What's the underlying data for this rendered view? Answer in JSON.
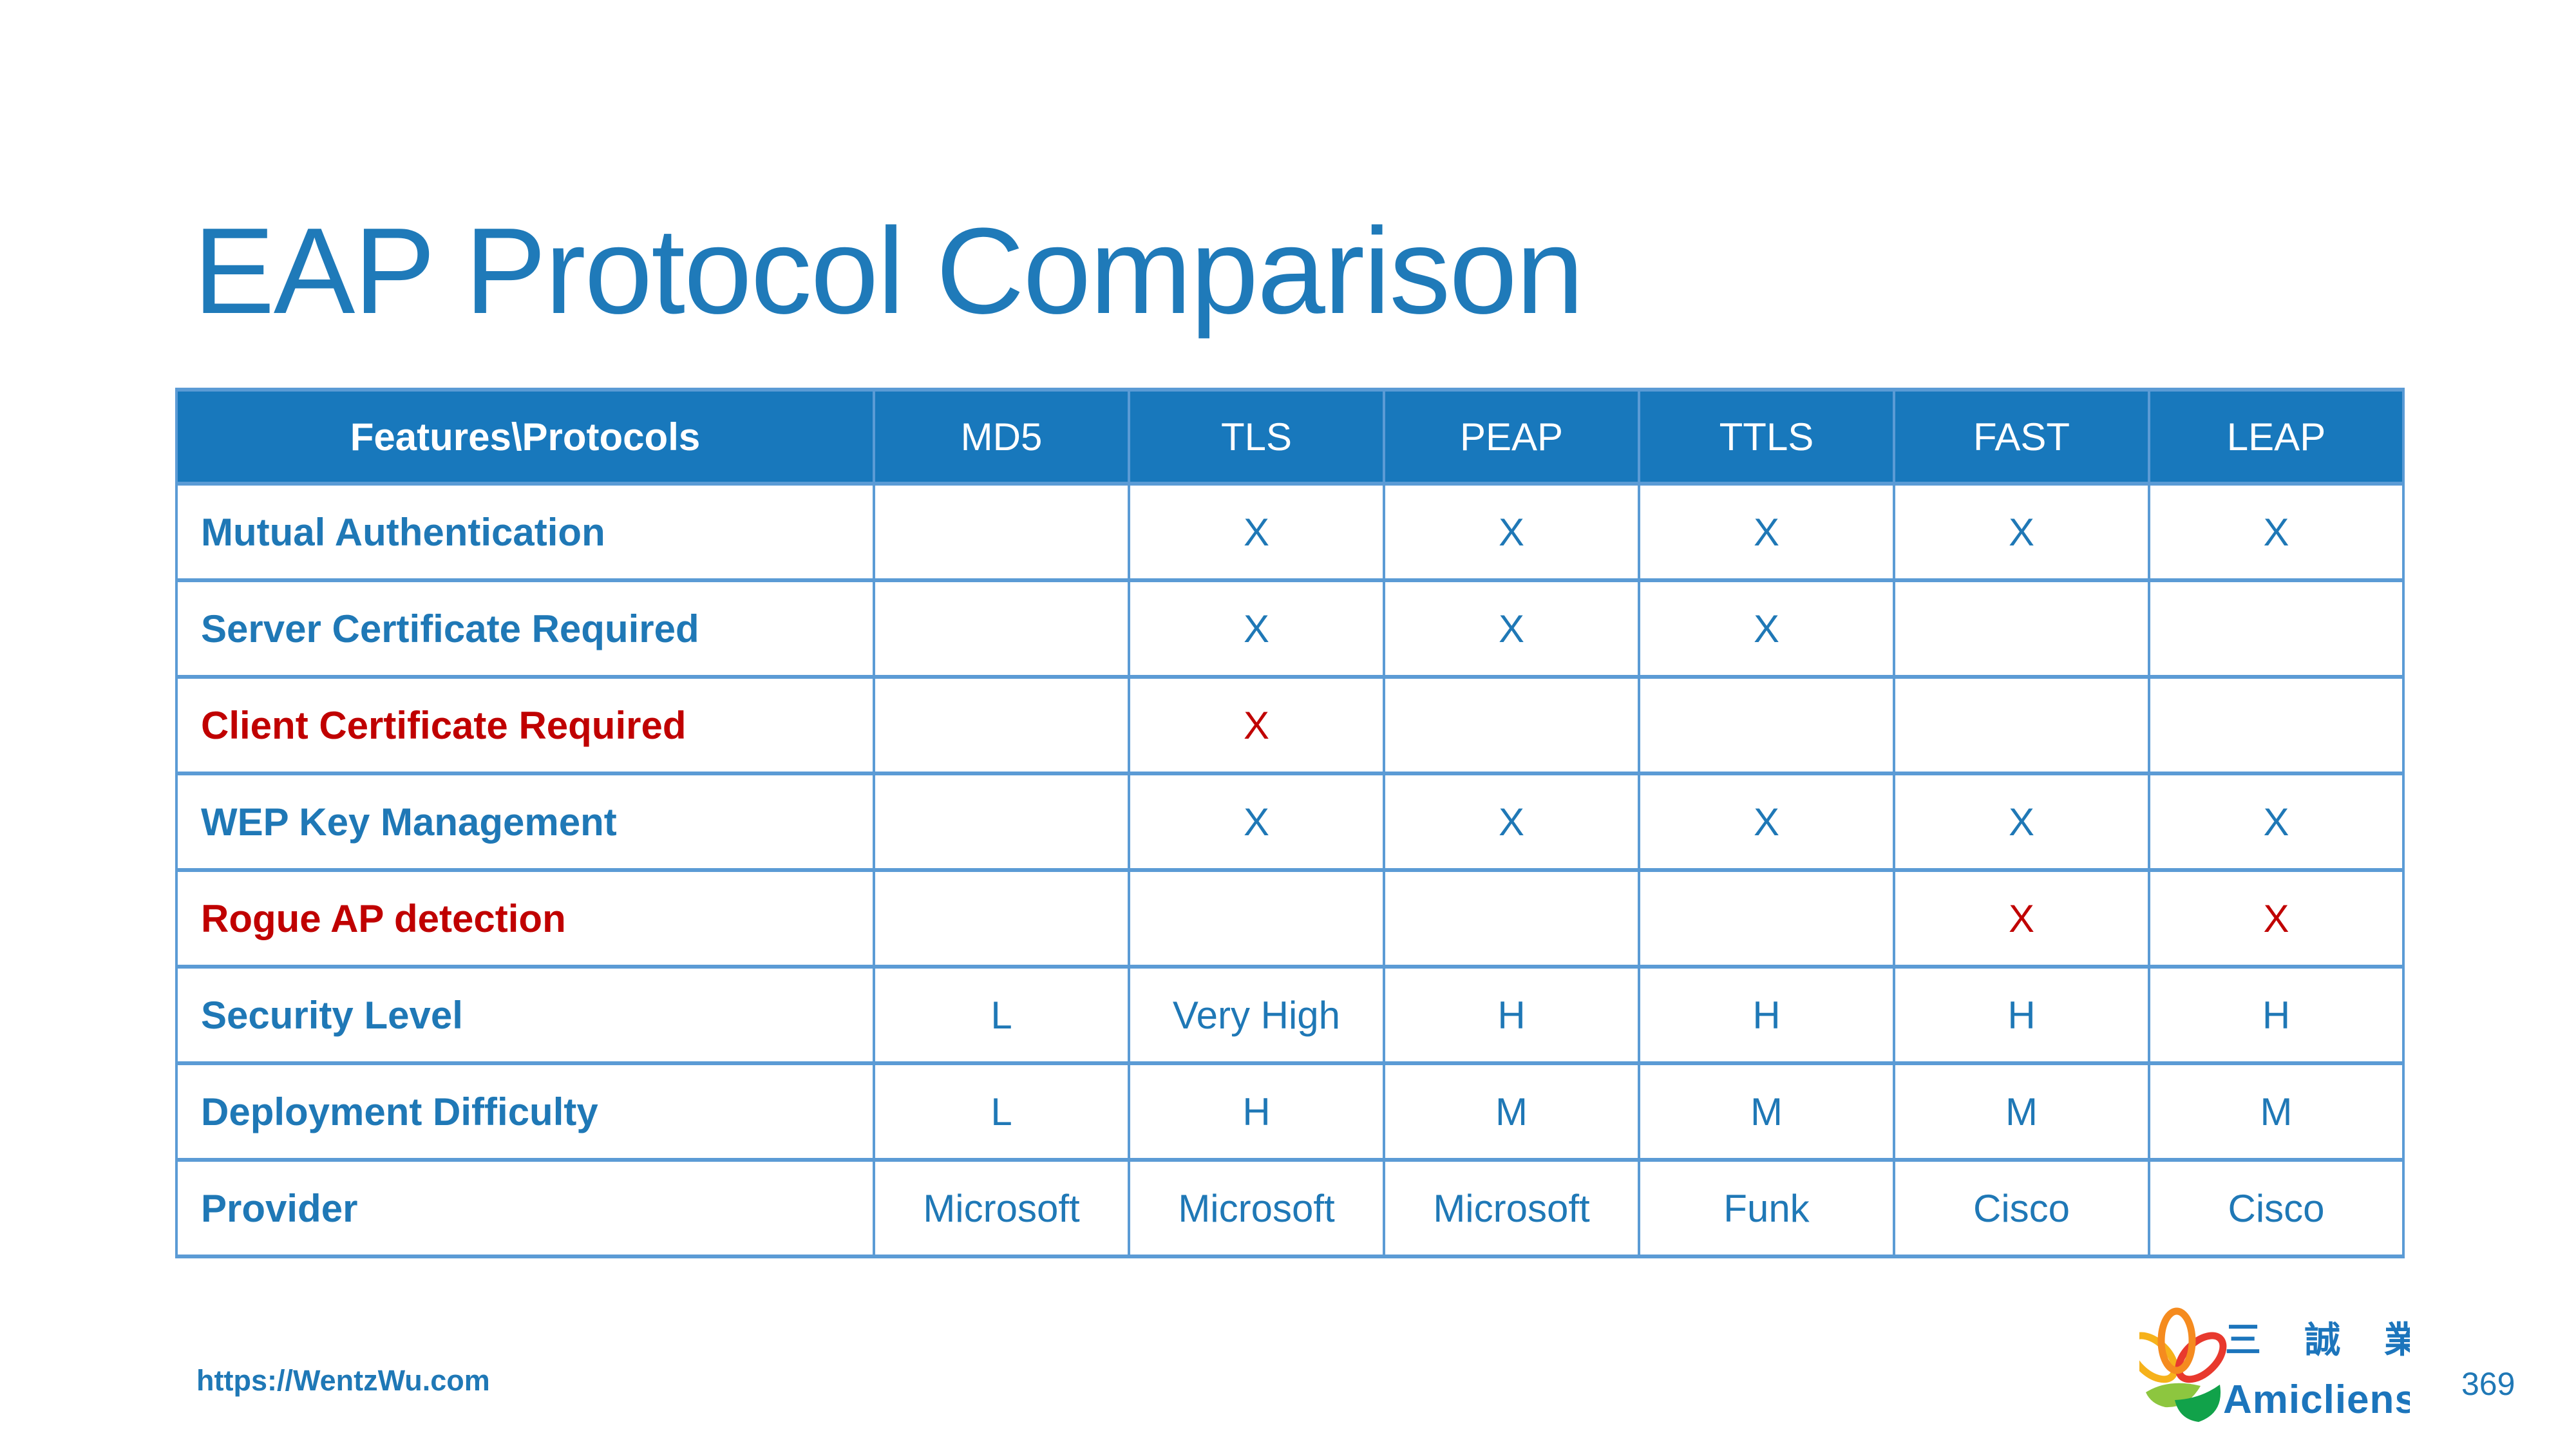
{
  "slide": {
    "title": "EAP Protocol Comparison",
    "footer_url": "https://WentzWu.com",
    "page_number": "369"
  },
  "logo": {
    "cjk_text": "三 誠 業",
    "brand_text": "Amicliens",
    "icon": "three-petal-flower-with-green-leaves"
  },
  "colors": {
    "title_blue": "#1F7AB9",
    "header_bg_blue": "#1878BC",
    "border_blue": "#5B9BD5",
    "text_blue": "#1F78B6",
    "text_red": "#C00000",
    "header_text_white": "#FFFFFF"
  },
  "table": {
    "header": [
      "Features\\Protocols",
      "MD5",
      "TLS",
      "PEAP",
      "TTLS",
      "FAST",
      "LEAP"
    ],
    "rows": [
      {
        "label": "Mutual Authentication",
        "color": "#1F78B6",
        "cells": [
          "",
          "X",
          "X",
          "X",
          "X",
          "X"
        ]
      },
      {
        "label": "Server Certificate Required",
        "color": "#1F78B6",
        "cells": [
          "",
          "X",
          "X",
          "X",
          "",
          ""
        ]
      },
      {
        "label": "Client Certificate Required",
        "color": "#C00000",
        "cells": [
          "",
          "X",
          "",
          "",
          "",
          ""
        ]
      },
      {
        "label": "WEP Key Management",
        "color": "#1F78B6",
        "cells": [
          "",
          "X",
          "X",
          "X",
          "X",
          "X"
        ]
      },
      {
        "label": "Rogue AP detection",
        "color": "#C00000",
        "cells": [
          "",
          "",
          "",
          "",
          "X",
          "X"
        ]
      },
      {
        "label": "Security Level",
        "color": "#1F78B6",
        "cells": [
          "L",
          "Very High",
          "H",
          "H",
          "H",
          "H"
        ]
      },
      {
        "label": "Deployment Difficulty",
        "color": "#1F78B6",
        "cells": [
          "L",
          "H",
          "M",
          "M",
          "M",
          "M"
        ]
      },
      {
        "label": "Provider",
        "color": "#1F78B6",
        "cells": [
          "Microsoft",
          "Microsoft",
          "Microsoft",
          "Funk",
          "Cisco",
          "Cisco"
        ]
      }
    ]
  }
}
